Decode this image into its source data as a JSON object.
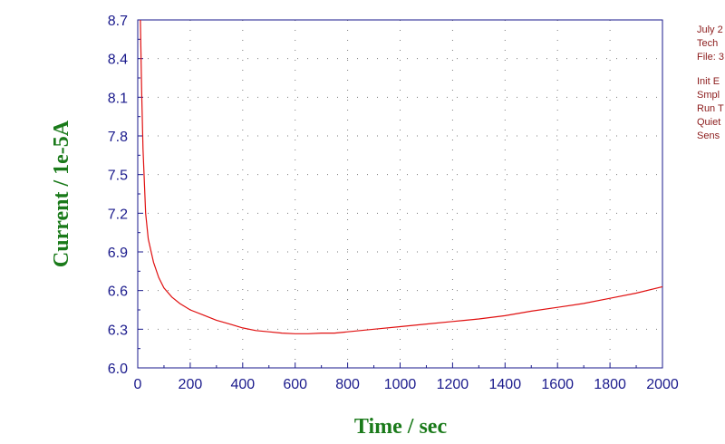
{
  "chart_data": {
    "type": "line",
    "title": "",
    "xlabel": "Time / sec",
    "ylabel": "Current / 1e-5A",
    "xlim": [
      0,
      2000
    ],
    "ylim": [
      6.0,
      8.7
    ],
    "x_ticks": [
      "0",
      "200",
      "400",
      "600",
      "800",
      "1000",
      "1200",
      "1400",
      "1600",
      "1800",
      "2000"
    ],
    "y_ticks": [
      "6.0",
      "6.3",
      "6.6",
      "6.9",
      "7.2",
      "7.5",
      "7.8",
      "8.1",
      "8.4",
      "8.7"
    ],
    "grid": "dotted",
    "line_color": "#e01010",
    "series": [
      {
        "x": [
          10,
          15,
          20,
          30,
          40,
          60,
          80,
          100,
          130,
          160,
          200,
          250,
          300,
          350,
          400,
          450,
          500,
          550,
          600,
          650,
          700,
          750,
          800,
          900,
          1000,
          1100,
          1200,
          1300,
          1400,
          1500,
          1600,
          1700,
          1800,
          1900,
          2000
        ],
        "y": [
          8.7,
          8.15,
          7.7,
          7.2,
          7.0,
          6.82,
          6.7,
          6.62,
          6.55,
          6.5,
          6.45,
          6.41,
          6.37,
          6.34,
          6.31,
          6.29,
          6.28,
          6.27,
          6.265,
          6.265,
          6.27,
          6.27,
          6.28,
          6.3,
          6.32,
          6.34,
          6.36,
          6.38,
          6.405,
          6.44,
          6.47,
          6.5,
          6.54,
          6.58,
          6.63
        ]
      }
    ]
  },
  "info_panel": {
    "lines_top": [
      "July 2",
      "Tech",
      "File: 3"
    ],
    "lines_bottom": [
      "Init E",
      "Smpl",
      "Run T",
      "Quiet",
      "Sens"
    ]
  },
  "colors": {
    "axis": "#1a1a8c",
    "grid": "#7a7a7a",
    "axis_title": "#1a7a1a",
    "info_text": "#8b1a1a"
  }
}
